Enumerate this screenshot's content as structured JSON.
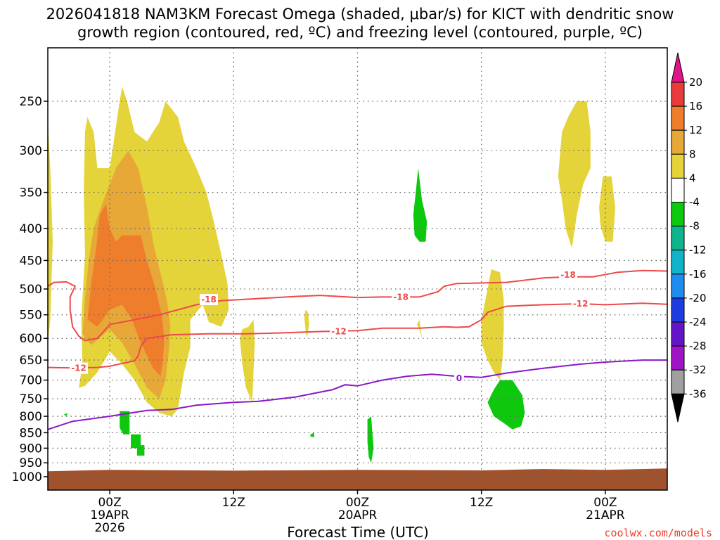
{
  "chart_data": {
    "type": "time-height",
    "title_line1": "2026041818 NAM3KM Forecast Omega (shaded, μbar/s) for KICT with dendritic snow",
    "title_line2": "growth region (contoured, red, ºC) and freezing level (contoured, purple, ºC)",
    "xlabel": "Forecast Time (UTC)",
    "credit": "coolwx.com/models",
    "pressure_levels": [
      250,
      300,
      350,
      400,
      450,
      500,
      550,
      600,
      650,
      700,
      750,
      800,
      850,
      900,
      950,
      1000
    ],
    "x_range_hours": [
      -5,
      45
    ],
    "x_ticks": [
      {
        "h": 0,
        "lines": [
          "00Z",
          "19APR",
          "2026"
        ]
      },
      {
        "h": 10,
        "lines": [
          "12Z"
        ]
      },
      {
        "h": 20,
        "lines": [
          "00Z",
          "20APR"
        ]
      },
      {
        "h": 30,
        "lines": [
          "12Z"
        ]
      },
      {
        "h": 40,
        "lines": [
          "00Z",
          "21APR"
        ]
      }
    ],
    "colorbar": {
      "labels": [
        "20",
        "16",
        "12",
        "8",
        "4",
        "-4",
        "-8",
        "-12",
        "-16",
        "-20",
        "-24",
        "-28",
        "-32",
        "-36"
      ],
      "colors": [
        "#e2128a",
        "#e83c3c",
        "#ef7e2c",
        "#e8a838",
        "#e5d33a",
        "#ffffff",
        "#0ec80e",
        "#10b48c",
        "#10b4c8",
        "#1f8cf0",
        "#1f3ce0",
        "#6414c8",
        "#a014c8",
        "#a0a0a0",
        "#000000"
      ]
    },
    "dgz_contours": [
      {
        "label": "-18",
        "label_positions": [
          [
            8,
            520
          ],
          [
            23.5,
            515
          ],
          [
            37,
            475
          ]
        ],
        "points": [
          [
            -5,
            495
          ],
          [
            -4.5,
            488
          ],
          [
            -3.5,
            487
          ],
          [
            -2.8,
            495
          ],
          [
            -3.2,
            515
          ],
          [
            -3.2,
            540
          ],
          [
            -3,
            575
          ],
          [
            -2.5,
            595
          ],
          [
            -2,
            605
          ],
          [
            -1,
            600
          ],
          [
            -0.5,
            585
          ],
          [
            0,
            570
          ],
          [
            2,
            560
          ],
          [
            4,
            550
          ],
          [
            7,
            530
          ],
          [
            9,
            522
          ],
          [
            12,
            518
          ],
          [
            15,
            514
          ],
          [
            17,
            512
          ],
          [
            20,
            516
          ],
          [
            22,
            515
          ],
          [
            25,
            515
          ],
          [
            26.5,
            505
          ],
          [
            27,
            495
          ],
          [
            28,
            490
          ],
          [
            32,
            488
          ],
          [
            35,
            480
          ],
          [
            37,
            478
          ],
          [
            39,
            478
          ],
          [
            41,
            470
          ],
          [
            43,
            467
          ],
          [
            45,
            468
          ]
        ]
      },
      {
        "label": "-12",
        "label_positions": [
          [
            -2.5,
            670
          ],
          [
            18.5,
            585
          ],
          [
            38,
            528
          ]
        ],
        "points": [
          [
            -5,
            668
          ],
          [
            -3,
            669
          ],
          [
            -1,
            668
          ],
          [
            0,
            665
          ],
          [
            1,
            658
          ],
          [
            2,
            652
          ],
          [
            2.3,
            640
          ],
          [
            2.5,
            618
          ],
          [
            3,
            600
          ],
          [
            5,
            592
          ],
          [
            8,
            590
          ],
          [
            11,
            590
          ],
          [
            14,
            588
          ],
          [
            17,
            585
          ],
          [
            20,
            583
          ],
          [
            22,
            578
          ],
          [
            25,
            578
          ],
          [
            27,
            575
          ],
          [
            28,
            576
          ],
          [
            29,
            575
          ],
          [
            30,
            560
          ],
          [
            30.5,
            545
          ],
          [
            32,
            533
          ],
          [
            35,
            530
          ],
          [
            38,
            528
          ],
          [
            40,
            530
          ],
          [
            43,
            527
          ],
          [
            45,
            529
          ]
        ]
      }
    ],
    "freezing_level": {
      "label": "0",
      "label_position": [
        28.2,
        695
      ],
      "points": [
        [
          -5,
          840
        ],
        [
          -3,
          815
        ],
        [
          0,
          800
        ],
        [
          3,
          783
        ],
        [
          5,
          780
        ],
        [
          7,
          768
        ],
        [
          10,
          760
        ],
        [
          12,
          757
        ],
        [
          15,
          745
        ],
        [
          18,
          725
        ],
        [
          19,
          712
        ],
        [
          20,
          715
        ],
        [
          22,
          700
        ],
        [
          24,
          690
        ],
        [
          26,
          685
        ],
        [
          28,
          690
        ],
        [
          30,
          693
        ],
        [
          32,
          682
        ],
        [
          35,
          670
        ],
        [
          38,
          660
        ],
        [
          40,
          655
        ],
        [
          43,
          650
        ],
        [
          45,
          650
        ]
      ]
    },
    "omega_regions": [
      {
        "value": 4,
        "points": [
          [
            -5,
            270
          ],
          [
            -4.8,
            320
          ],
          [
            -4.6,
            420
          ],
          [
            -4.8,
            560
          ],
          [
            -5,
            610
          ]
        ]
      },
      {
        "value": 4,
        "points": [
          [
            -2.5,
            720
          ],
          [
            -2.2,
            660
          ],
          [
            -2.3,
            560
          ],
          [
            -2,
            440
          ],
          [
            -2.1,
            350
          ],
          [
            -2,
            280
          ],
          [
            -1.8,
            265
          ],
          [
            -1.3,
            280
          ],
          [
            -1,
            320
          ],
          [
            0,
            320
          ],
          [
            0.8,
            250
          ],
          [
            1,
            237
          ],
          [
            1.4,
            250
          ],
          [
            2,
            280
          ],
          [
            3,
            290
          ],
          [
            4,
            270
          ],
          [
            4.5,
            250
          ],
          [
            5.5,
            265
          ],
          [
            6,
            290
          ],
          [
            7,
            320
          ],
          [
            7.8,
            350
          ],
          [
            8.4,
            390
          ],
          [
            9,
            440
          ],
          [
            9.5,
            490
          ],
          [
            9.6,
            540
          ],
          [
            9,
            575
          ],
          [
            8,
            565
          ],
          [
            7.5,
            530
          ],
          [
            6.5,
            560
          ],
          [
            6.5,
            620
          ],
          [
            6,
            680
          ],
          [
            5.5,
            780
          ],
          [
            5,
            800
          ],
          [
            4,
            790
          ],
          [
            3,
            760
          ],
          [
            2,
            700
          ],
          [
            1,
            660
          ],
          [
            0,
            630
          ],
          [
            -1,
            680
          ],
          [
            -2,
            715
          ]
        ]
      },
      {
        "value": 8,
        "points": [
          [
            -2.2,
            590
          ],
          [
            -2,
            520
          ],
          [
            -1.7,
            450
          ],
          [
            -1.3,
            400
          ],
          [
            -0.5,
            360
          ],
          [
            0.5,
            320
          ],
          [
            1.5,
            300
          ],
          [
            2.3,
            320
          ],
          [
            3,
            370
          ],
          [
            3.6,
            430
          ],
          [
            4.2,
            480
          ],
          [
            4.6,
            520
          ],
          [
            4.9,
            570
          ],
          [
            4.8,
            620
          ],
          [
            4.5,
            700
          ],
          [
            4,
            750
          ],
          [
            3,
            720
          ],
          [
            2,
            660
          ],
          [
            1,
            610
          ],
          [
            0,
            580
          ],
          [
            -1.5,
            615
          ]
        ]
      },
      {
        "value": 12,
        "points": [
          [
            -1.8,
            560
          ],
          [
            -1.5,
            490
          ],
          [
            -1.1,
            430
          ],
          [
            -0.8,
            380
          ],
          [
            -0.3,
            365
          ],
          [
            0,
            400
          ],
          [
            0.5,
            420
          ],
          [
            1,
            410
          ],
          [
            2.5,
            410
          ],
          [
            3,
            450
          ],
          [
            3.7,
            500
          ],
          [
            4.2,
            550
          ],
          [
            4.4,
            600
          ],
          [
            4.3,
            650
          ],
          [
            4.1,
            690
          ],
          [
            3.5,
            670
          ],
          [
            2.5,
            610
          ],
          [
            1.8,
            560
          ],
          [
            1,
            530
          ],
          [
            0,
            540
          ],
          [
            -1,
            575
          ]
        ]
      },
      {
        "value": 4,
        "points": [
          [
            10.7,
            580
          ],
          [
            11.2,
            575
          ],
          [
            11.6,
            560
          ],
          [
            11.7,
            610
          ],
          [
            11.6,
            680
          ],
          [
            11.5,
            760
          ],
          [
            11,
            720
          ],
          [
            10.7,
            660
          ],
          [
            10.5,
            600
          ]
        ]
      },
      {
        "value": 4,
        "points": [
          [
            15.8,
            540
          ],
          [
            16,
            545
          ],
          [
            16.1,
            570
          ],
          [
            15.9,
            600
          ],
          [
            15.8,
            580
          ],
          [
            15.7,
            555
          ]
        ]
      },
      {
        "value": 4,
        "points": [
          [
            25,
            560
          ],
          [
            25.2,
            600
          ],
          [
            25,
            580
          ],
          [
            24.8,
            570
          ]
        ]
      },
      {
        "value": 4,
        "points": [
          [
            30,
            560
          ],
          [
            30.5,
            500
          ],
          [
            30.8,
            465
          ],
          [
            31.5,
            470
          ],
          [
            31.8,
            520
          ],
          [
            31.8,
            580
          ],
          [
            31.7,
            650
          ],
          [
            31.5,
            700
          ],
          [
            31,
            680
          ],
          [
            30.5,
            650
          ],
          [
            30,
            610
          ]
        ]
      },
      {
        "value": 4,
        "points": [
          [
            36.2,
            330
          ],
          [
            36.5,
            280
          ],
          [
            37,
            265
          ],
          [
            37.7,
            250
          ],
          [
            38.5,
            250
          ],
          [
            38.8,
            280
          ],
          [
            38.8,
            320
          ],
          [
            38.2,
            340
          ],
          [
            37.7,
            380
          ],
          [
            37.3,
            430
          ],
          [
            36.8,
            400
          ],
          [
            36.5,
            360
          ]
        ]
      },
      {
        "value": 4,
        "points": [
          [
            39.5,
            370
          ],
          [
            39.8,
            330
          ],
          [
            40.5,
            330
          ],
          [
            40.8,
            370
          ],
          [
            40.6,
            420
          ],
          [
            40,
            420
          ],
          [
            39.6,
            395
          ]
        ]
      },
      {
        "value": -4,
        "points": [
          [
            24.5,
            380
          ],
          [
            24.7,
            350
          ],
          [
            24.9,
            320
          ],
          [
            25.2,
            360
          ],
          [
            25.6,
            390
          ],
          [
            25.5,
            420
          ],
          [
            25,
            420
          ],
          [
            24.6,
            410
          ]
        ]
      },
      {
        "value": -4,
        "points": [
          [
            30.5,
            760
          ],
          [
            31,
            725
          ],
          [
            31.5,
            700
          ],
          [
            32.5,
            700
          ],
          [
            33.3,
            740
          ],
          [
            33.5,
            790
          ],
          [
            33.2,
            830
          ],
          [
            32.5,
            840
          ],
          [
            31.8,
            820
          ],
          [
            31,
            800
          ]
        ]
      },
      {
        "value": -4,
        "points": [
          [
            -3.7,
            795
          ],
          [
            -3.5,
            800
          ],
          [
            -3.4,
            790
          ]
        ]
      },
      {
        "value": -4,
        "points": [
          [
            0.8,
            785
          ],
          [
            1.6,
            785
          ],
          [
            1.6,
            855
          ],
          [
            1.1,
            855
          ],
          [
            0.8,
            835
          ]
        ]
      },
      {
        "value": -4,
        "points": [
          [
            1.7,
            855
          ],
          [
            2.5,
            855
          ],
          [
            2.5,
            890
          ],
          [
            2.8,
            890
          ],
          [
            2.8,
            925
          ],
          [
            2.2,
            925
          ],
          [
            2.2,
            900
          ],
          [
            1.7,
            900
          ]
        ]
      },
      {
        "value": -4,
        "points": [
          [
            16.2,
            855
          ],
          [
            16.5,
            850
          ],
          [
            16.5,
            865
          ],
          [
            16.2,
            862
          ]
        ]
      },
      {
        "value": -4,
        "points": [
          [
            20.8,
            810
          ],
          [
            21.1,
            800
          ],
          [
            21.2,
            850
          ],
          [
            21.3,
            900
          ],
          [
            21.1,
            950
          ],
          [
            20.9,
            930
          ],
          [
            20.8,
            880
          ]
        ]
      }
    ],
    "ground": {
      "top_points": [
        [
          -5,
          980
        ],
        [
          0,
          975
        ],
        [
          10,
          978
        ],
        [
          20,
          975
        ],
        [
          30,
          977
        ],
        [
          35,
          972
        ],
        [
          40,
          975
        ],
        [
          45,
          970
        ]
      ]
    }
  }
}
